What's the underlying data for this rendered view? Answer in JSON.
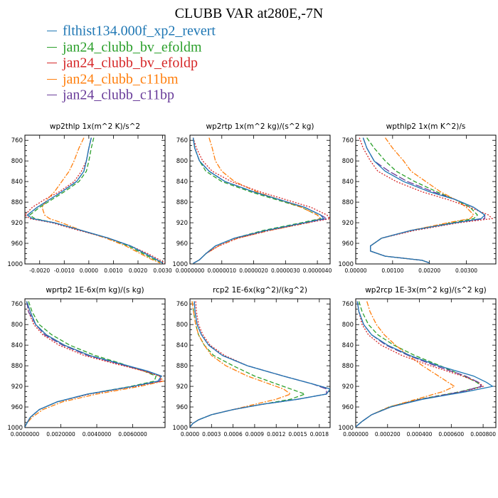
{
  "page": {
    "title": "CLUBB VAR at280E,-7N"
  },
  "legend": [
    {
      "label": "flthist134.000f_xp2_revert",
      "color": "#1f77b4",
      "dash": ""
    },
    {
      "label": "jan24_clubb_bv_efoldm",
      "color": "#2ca02c",
      "dash": "6,3"
    },
    {
      "label": "jan24_clubb_bv_efoldp",
      "color": "#d62728",
      "dash": "2,2"
    },
    {
      "label": "jan24_clubb_c11bm",
      "color": "#ff7f0e",
      "dash": "7,2,2,2"
    },
    {
      "label": "jan24_clubb_c11bp",
      "color": "#6a3d9a",
      "dash": "10,3"
    }
  ],
  "chart_data": [
    {
      "type": "line",
      "title": "wp2thlp  1x(m^2 K)/s^2",
      "ylim": [
        1000,
        750
      ],
      "yticks": [
        760,
        800,
        840,
        880,
        920,
        960,
        1000
      ],
      "xlim": [
        -0.0026,
        0.0031
      ],
      "xticks": [
        "-0.0020",
        "-0.0010",
        "0.0000",
        "0.0010",
        "0.0020",
        "0.0030"
      ],
      "xtick_values": [
        -0.002,
        -0.001,
        0.0,
        0.001,
        0.002,
        0.003
      ],
      "y": [
        755,
        775,
        800,
        820,
        840,
        860,
        875,
        890,
        905,
        912,
        920,
        935,
        950,
        965,
        980,
        990,
        998
      ],
      "series": [
        {
          "values": [
            0.0001,
            0.0,
            -0.0001,
            -0.0002,
            -0.0005,
            -0.0011,
            -0.0016,
            -0.0021,
            -0.0025,
            -0.0023,
            -0.0014,
            -0.0003,
            0.0008,
            0.0017,
            0.0023,
            0.0027,
            0.003
          ]
        },
        {
          "values": [
            0.0002,
            0.0001,
            0.0,
            -0.0001,
            -0.0004,
            -0.001,
            -0.0015,
            -0.002,
            -0.0024,
            -0.0022,
            -0.0014,
            -0.0003,
            0.0008,
            0.0016,
            0.0022,
            0.0026,
            0.003
          ]
        },
        {
          "values": [
            0.0001,
            0.0,
            -0.0001,
            -0.0003,
            -0.0006,
            -0.0012,
            -0.0018,
            -0.0023,
            -0.0026,
            -0.0024,
            -0.0015,
            -0.0004,
            0.0008,
            0.0017,
            0.0024,
            0.0028,
            0.0031
          ]
        },
        {
          "values": [
            -0.0002,
            -0.0004,
            -0.0006,
            -0.0008,
            -0.0011,
            -0.0014,
            -0.0017,
            -0.0019,
            -0.0018,
            -0.0016,
            -0.0011,
            -0.0003,
            0.0007,
            0.0015,
            0.0021,
            0.0025,
            0.0029
          ]
        },
        {
          "values": [
            0.0001,
            0.0,
            -0.0001,
            -0.0002,
            -0.0005,
            -0.0011,
            -0.0016,
            -0.0021,
            -0.0025,
            -0.0023,
            -0.0014,
            -0.0003,
            0.0008,
            0.0017,
            0.0023,
            0.0027,
            0.003
          ]
        }
      ]
    },
    {
      "type": "line",
      "title": "wp2rtp  1x(m^2 kg)/(s^2 kg)",
      "ylim": [
        1000,
        750
      ],
      "yticks": [
        760,
        800,
        840,
        880,
        920,
        960,
        1000
      ],
      "xlim": [
        0.0,
        4.4e-06
      ],
      "xticks": [
        "0.0000000",
        "0.0000010",
        "0.0000020",
        "0.0000030",
        "0.0000040"
      ],
      "xtick_values": [
        0.0,
        1e-06,
        2e-06,
        3e-06,
        4e-06
      ],
      "y": [
        755,
        775,
        800,
        820,
        840,
        860,
        875,
        890,
        905,
        912,
        920,
        935,
        950,
        965,
        980,
        992,
        999
      ],
      "series": [
        {
          "values": [
            1e-07,
            1.5e-07,
            3e-07,
            6e-07,
            1.1e-06,
            2e-06,
            2.8e-06,
            3.6e-06,
            4.1e-06,
            4.2e-06,
            3.6e-06,
            2.4e-06,
            1.4e-06,
            8e-07,
            5e-07,
            3e-07,
            1e-07
          ]
        },
        {
          "values": [
            1e-07,
            1.5e-07,
            3e-07,
            5e-07,
            1e-06,
            1.9e-06,
            2.7e-06,
            3.5e-06,
            4e-06,
            4.1e-06,
            3.5e-06,
            2.3e-06,
            1.4e-06,
            8e-07,
            5e-07,
            3e-07,
            1e-07
          ]
        },
        {
          "values": [
            1e-07,
            2e-07,
            4e-07,
            7e-07,
            1.3e-06,
            2.2e-06,
            3e-06,
            3.8e-06,
            4.3e-06,
            4.4e-06,
            3.7e-06,
            2.5e-06,
            1.5e-06,
            9e-07,
            5e-07,
            3e-07,
            1e-07
          ]
        },
        {
          "values": [
            6e-07,
            7e-07,
            8e-07,
            1e-06,
            1.4e-06,
            2.1e-06,
            2.8e-06,
            3.5e-06,
            4e-06,
            4.1e-06,
            3.7e-06,
            2.5e-06,
            1.5e-06,
            9e-07,
            5e-07,
            3e-07,
            1e-07
          ]
        },
        {
          "values": [
            1e-07,
            1.5e-07,
            3e-07,
            6e-07,
            1.1e-06,
            2e-06,
            2.8e-06,
            3.6e-06,
            4.1e-06,
            4.3e-06,
            3.6e-06,
            2.4e-06,
            1.4e-06,
            8e-07,
            5e-07,
            3e-07,
            1e-07
          ]
        }
      ]
    },
    {
      "type": "line",
      "title": "wpthlp2  1x(m K^2)/s",
      "ylim": [
        1000,
        750
      ],
      "yticks": [
        760,
        800,
        840,
        880,
        920,
        960,
        1000
      ],
      "xlim": [
        0.0,
        0.0038
      ],
      "xticks": [
        "0.00000",
        "0.00100",
        "0.00200",
        "0.00300"
      ],
      "xtick_values": [
        0.0,
        0.001,
        0.002,
        0.003
      ],
      "y": [
        755,
        775,
        800,
        820,
        840,
        860,
        875,
        890,
        905,
        912,
        920,
        935,
        950,
        965,
        975,
        985,
        993,
        998
      ],
      "series": [
        {
          "values": [
            0.0002,
            0.0003,
            0.0005,
            0.0008,
            0.0013,
            0.002,
            0.0027,
            0.0032,
            0.0035,
            0.0034,
            0.0027,
            0.0015,
            0.0007,
            0.0004,
            0.0004,
            0.0008,
            0.0018,
            0.002
          ]
        },
        {
          "values": [
            0.0003,
            0.0005,
            0.0008,
            0.0011,
            0.0016,
            0.0022,
            0.0027,
            0.0031,
            0.0033,
            0.0032,
            0.0026,
            0.0015,
            0.0007,
            0.0004,
            0.0004,
            0.0008,
            0.0018,
            0.002
          ]
        },
        {
          "values": [
            0.0001,
            0.0002,
            0.0004,
            0.0006,
            0.0011,
            0.0018,
            0.0025,
            0.0031,
            0.0036,
            0.0037,
            0.0028,
            0.0016,
            0.0007,
            0.0004,
            0.0004,
            0.0008,
            0.0018,
            0.002
          ]
        },
        {
          "values": [
            0.0008,
            0.001,
            0.0013,
            0.0015,
            0.0019,
            0.0023,
            0.0027,
            0.003,
            0.0032,
            0.0031,
            0.0025,
            0.0015,
            0.0007,
            0.0004,
            0.0004,
            0.0008,
            0.0018,
            0.002
          ]
        },
        {
          "values": [
            0.0002,
            0.0003,
            0.0005,
            0.0009,
            0.0014,
            0.0021,
            0.0027,
            0.0032,
            0.0035,
            0.0035,
            0.0027,
            0.0015,
            0.0007,
            0.0004,
            0.0004,
            0.0008,
            0.0018,
            0.002
          ]
        }
      ]
    },
    {
      "type": "line",
      "title": "wprtp2  1E-6x(m kg)/(s kg)",
      "ylim": [
        1000,
        750
      ],
      "yticks": [
        760,
        800,
        840,
        880,
        920,
        960,
        1000
      ],
      "xlim": [
        0.0,
        0.0078
      ],
      "xticks": [
        "0.0000000",
        "0.0020000",
        "0.0040000",
        "0.0060000"
      ],
      "xtick_values": [
        0.0,
        0.002,
        0.004,
        0.006
      ],
      "y": [
        755,
        775,
        800,
        820,
        840,
        860,
        875,
        890,
        900,
        910,
        920,
        935,
        950,
        965,
        980,
        992,
        999
      ],
      "series": [
        {
          "values": [
            0.0001,
            0.0003,
            0.0006,
            0.0012,
            0.0022,
            0.0036,
            0.0052,
            0.0068,
            0.0076,
            0.0074,
            0.006,
            0.0035,
            0.0018,
            0.0008,
            0.0003,
            0.0001,
            0.0
          ]
        },
        {
          "values": [
            0.0002,
            0.0004,
            0.0008,
            0.0015,
            0.0025,
            0.0039,
            0.0053,
            0.0066,
            0.0073,
            0.0072,
            0.0059,
            0.0035,
            0.0018,
            0.0008,
            0.0003,
            0.0001,
            0.0
          ]
        },
        {
          "values": [
            0.0001,
            0.0002,
            0.0005,
            0.001,
            0.0019,
            0.0033,
            0.0049,
            0.0066,
            0.0075,
            0.0076,
            0.0061,
            0.0036,
            0.0018,
            0.0008,
            0.0003,
            0.0001,
            0.0
          ]
        },
        {
          "values": [
            0.0001,
            0.0003,
            0.0006,
            0.0012,
            0.0022,
            0.0036,
            0.0051,
            0.0066,
            0.0075,
            0.0077,
            0.0064,
            0.004,
            0.0021,
            0.001,
            0.0004,
            0.0001,
            0.0
          ]
        },
        {
          "values": [
            0.0001,
            0.0002,
            0.0006,
            0.0011,
            0.0021,
            0.0035,
            0.0051,
            0.0067,
            0.0076,
            0.0075,
            0.006,
            0.0035,
            0.0018,
            0.0008,
            0.0003,
            0.0001,
            0.0
          ]
        }
      ]
    },
    {
      "type": "line",
      "title": "rcp2  1E-6x(kg^2)/(kg^2)",
      "ylim": [
        1000,
        750
      ],
      "yticks": [
        760,
        800,
        840,
        880,
        920,
        960,
        1000
      ],
      "xlim": [
        0.0,
        0.00195
      ],
      "xticks": [
        "0.0000",
        "0.0003",
        "0.0006",
        "0.0009",
        "0.0012",
        "0.0015",
        "0.0018"
      ],
      "xtick_values": [
        0.0,
        0.0003,
        0.0006,
        0.0009,
        0.0012,
        0.0015,
        0.0018
      ],
      "y": [
        755,
        775,
        800,
        820,
        840,
        860,
        880,
        900,
        915,
        925,
        935,
        945,
        955,
        965,
        975,
        985,
        992,
        999
      ],
      "series": [
        {
          "values": [
            6e-05,
            7e-05,
            0.0001,
            0.00016,
            0.00026,
            0.00045,
            0.0008,
            0.0013,
            0.0017,
            0.00195,
            0.0019,
            0.0015,
            0.001,
            0.0006,
            0.0003,
            0.00012,
            4e-05,
            0.0
          ]
        },
        {
          "values": [
            3e-05,
            5e-05,
            8e-05,
            0.00012,
            0.0002,
            0.00033,
            0.0006,
            0.0009,
            0.0012,
            0.0014,
            0.0016,
            0.0014,
            0.001,
            0.0006,
            0.0003,
            0.00012,
            4e-05,
            0.0
          ]
        },
        {
          "values": [
            8e-05,
            9e-05,
            0.00012,
            0.00018,
            0.00028,
            0.00048,
            0.0008,
            0.0013,
            0.0017,
            0.00195,
            0.0019,
            0.0015,
            0.001,
            0.0006,
            0.0003,
            0.00012,
            4e-05,
            0.0
          ]
        },
        {
          "values": [
            3e-05,
            5e-05,
            8e-05,
            0.00012,
            0.0002,
            0.0003,
            0.0005,
            0.0008,
            0.0011,
            0.0013,
            0.0014,
            0.0012,
            0.0009,
            0.0006,
            0.0003,
            0.00012,
            4e-05,
            0.0
          ]
        },
        {
          "values": [
            6e-05,
            7e-05,
            0.0001,
            0.00016,
            0.00026,
            0.00045,
            0.0008,
            0.0013,
            0.0017,
            0.0019,
            0.0019,
            0.0015,
            0.001,
            0.0006,
            0.0003,
            0.00012,
            4e-05,
            0.0
          ]
        }
      ]
    },
    {
      "type": "line",
      "title": "wp2rcp  1E-3x(m^2 kg)/(s^2 kg)",
      "ylim": [
        1000,
        750
      ],
      "yticks": [
        760,
        800,
        840,
        880,
        920,
        960,
        1000
      ],
      "xlim": [
        0.0,
        0.00088
      ],
      "xticks": [
        "0.000000",
        "0.000200",
        "0.000400",
        "0.000600",
        "0.000800"
      ],
      "xtick_values": [
        0.0,
        0.0002,
        0.0004,
        0.0006,
        0.0008
      ],
      "y": [
        755,
        775,
        800,
        820,
        840,
        860,
        880,
        900,
        912,
        920,
        930,
        945,
        960,
        975,
        988,
        996,
        999
      ],
      "series": [
        {
          "values": [
            1e-05,
            2e-05,
            5e-05,
            0.0001,
            0.0002,
            0.00034,
            0.00052,
            0.00074,
            0.00082,
            0.00086,
            0.0007,
            0.00042,
            0.00022,
            0.0001,
            4e-05,
            1e-05,
            0.0
          ]
        },
        {
          "values": [
            2e-05,
            4e-05,
            8e-05,
            0.00014,
            0.00024,
            0.00037,
            0.00053,
            0.00068,
            0.00076,
            0.00079,
            0.00066,
            0.0004,
            0.00021,
            0.0001,
            4e-05,
            1e-05,
            0.0
          ]
        },
        {
          "values": [
            1e-05,
            2e-05,
            4e-05,
            8e-05,
            0.00016,
            0.00029,
            0.00047,
            0.00067,
            0.00077,
            0.0008,
            0.00068,
            0.00041,
            0.00022,
            0.0001,
            4e-05,
            1e-05,
            0.0
          ]
        },
        {
          "values": [
            7e-05,
            9e-05,
            0.00013,
            0.00018,
            0.00025,
            0.00033,
            0.00042,
            0.00052,
            0.00058,
            0.00062,
            0.00055,
            0.00038,
            0.00021,
            0.0001,
            4e-05,
            1e-05,
            0.0
          ]
        },
        {
          "values": [
            1e-05,
            2e-05,
            5e-05,
            0.0001,
            0.00019,
            0.00033,
            0.0005,
            0.00069,
            0.00077,
            0.00079,
            0.00067,
            0.00041,
            0.00022,
            0.0001,
            4e-05,
            1e-05,
            0.0
          ]
        }
      ]
    }
  ]
}
